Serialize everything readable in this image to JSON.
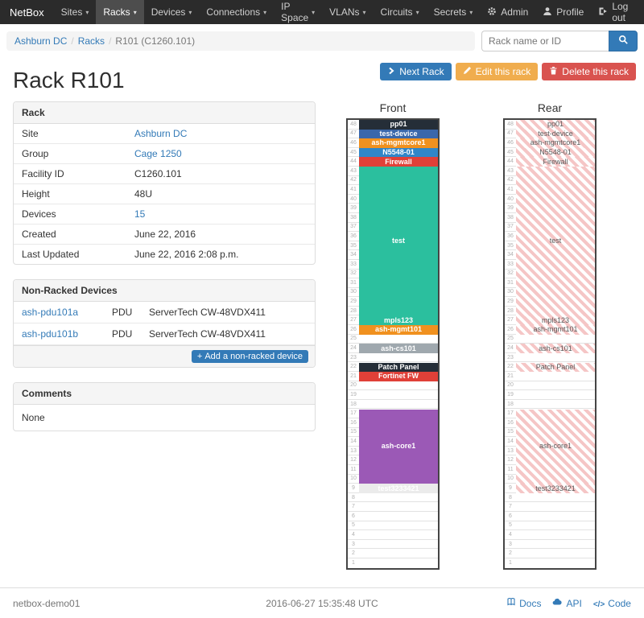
{
  "navbar": {
    "brand": "NetBox",
    "items": [
      {
        "label": "Sites"
      },
      {
        "label": "Racks",
        "active": true
      },
      {
        "label": "Devices"
      },
      {
        "label": "Connections"
      },
      {
        "label": "IP Space"
      },
      {
        "label": "VLANs"
      },
      {
        "label": "Circuits"
      },
      {
        "label": "Secrets"
      }
    ],
    "right_items": [
      {
        "label": "Admin",
        "icon": "gear-icon"
      },
      {
        "label": "Profile",
        "icon": "user-icon"
      },
      {
        "label": "Log out",
        "icon": "logout-icon"
      }
    ]
  },
  "breadcrumb": {
    "items": [
      {
        "label": "Ashburn DC",
        "link": true
      },
      {
        "label": "Racks",
        "link": true
      },
      {
        "label": "R101 (C1260.101)",
        "link": false
      }
    ]
  },
  "search": {
    "placeholder": "Rack name or ID"
  },
  "page": {
    "title": "Rack R101"
  },
  "actions": {
    "next": "Next Rack",
    "edit": "Edit this rack",
    "delete": "Delete this rack"
  },
  "rack_panel": {
    "title": "Rack",
    "rows": [
      {
        "label": "Site",
        "value": "Ashburn DC",
        "link": true
      },
      {
        "label": "Group",
        "value": "Cage 1250",
        "link": true
      },
      {
        "label": "Facility ID",
        "value": "C1260.101"
      },
      {
        "label": "Height",
        "value": "48U"
      },
      {
        "label": "Devices",
        "value": "15",
        "link": true
      },
      {
        "label": "Created",
        "value": "June 22, 2016"
      },
      {
        "label": "Last Updated",
        "value": "June 22, 2016 2:08 p.m."
      }
    ]
  },
  "nonracked_panel": {
    "title": "Non-Racked Devices",
    "rows": [
      {
        "name": "ash-pdu101a",
        "role": "PDU",
        "model": "ServerTech CW-48VDX411"
      },
      {
        "name": "ash-pdu101b",
        "role": "PDU",
        "model": "ServerTech CW-48VDX411"
      }
    ],
    "add_button": "Add a non-racked device"
  },
  "comments_panel": {
    "title": "Comments",
    "body": "None"
  },
  "rack": {
    "units": 48,
    "front_label": "Front",
    "rear_label": "Rear",
    "devices": [
      {
        "name": "pp01",
        "top_unit": 48,
        "height": 1,
        "color": "#252e38",
        "label_color": "#ffffff"
      },
      {
        "name": "test-device",
        "top_unit": 47,
        "height": 1,
        "color": "#3a67ab",
        "label_color": "#ffffff"
      },
      {
        "name": "ash-mgmtcore1",
        "top_unit": 46,
        "height": 1,
        "color": "#f0911f",
        "label_color": "#ffffff"
      },
      {
        "name": "N5548-01",
        "top_unit": 45,
        "height": 1,
        "color": "#3086c8",
        "label_color": "#ffffff"
      },
      {
        "name": "Firewall",
        "top_unit": 44,
        "height": 1,
        "color": "#e04038",
        "label_color": "#ffffff"
      },
      {
        "name": "test",
        "top_unit": 43,
        "height": 16,
        "color": "#2bbf9e",
        "label_color": "#ffffff"
      },
      {
        "name": "mpls123",
        "top_unit": 27,
        "height": 1,
        "color": "#2bbf9e",
        "label_color": "#ffffff"
      },
      {
        "name": "ash-mgmt101",
        "top_unit": 26,
        "height": 1,
        "color": "#f0911f",
        "label_color": "#ffffff"
      },
      {
        "name": "ash-cs101",
        "top_unit": 24,
        "height": 1,
        "color": "#9fa8ae",
        "label_color": "#ffffff"
      },
      {
        "name": "Patch Panel",
        "top_unit": 22,
        "height": 1,
        "color": "#252e38",
        "label_color": "#ffffff"
      },
      {
        "name": "Fortinet FW",
        "top_unit": 21,
        "height": 1,
        "color": "#e04038",
        "label_color": "#ffffff",
        "full_depth": false
      },
      {
        "name": "ash-core1",
        "top_unit": 17,
        "height": 8,
        "color": "#9b59b6",
        "label_color": "#ffffff"
      },
      {
        "name": "test3233421",
        "top_unit": 9,
        "height": 1,
        "color": "#ebebeb",
        "label_color": "#ffffff"
      }
    ]
  },
  "footer": {
    "hostname": "netbox-demo01",
    "timestamp": "2016-06-27 15:35:48 UTC",
    "links": [
      {
        "label": "Docs",
        "icon": "book-icon"
      },
      {
        "label": "API",
        "icon": "cloud-icon"
      },
      {
        "label": "Code",
        "icon": "code-icon"
      }
    ]
  }
}
